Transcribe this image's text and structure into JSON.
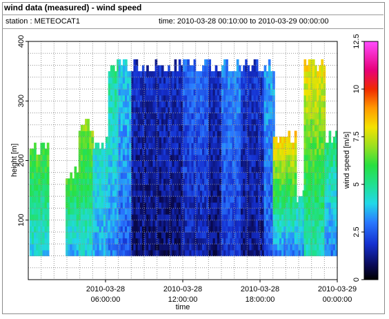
{
  "header": {
    "title": "wind data (measured) - wind speed",
    "station": "station : METEOCAT1",
    "time_range": "time: 2010-03-28 00:10:00 to 2010-03-29 00:00:00"
  },
  "chart_data": {
    "type": "heatmap",
    "title": "wind data (measured) - wind speed",
    "xlabel": "time",
    "ylabel": "height [m]",
    "colorbar_label": "wind speed [m/s]",
    "x_ticks": [
      {
        "line1": "2010-03-28",
        "line2": "06:00:00",
        "hour": 6
      },
      {
        "line1": "2010-03-28",
        "line2": "12:00:00",
        "hour": 12
      },
      {
        "line1": "2010-03-28",
        "line2": "18:00:00",
        "hour": 18
      },
      {
        "line1": "2010-03-29",
        "line2": "00:00:00",
        "hour": 24
      }
    ],
    "xlim_hours": [
      0,
      24
    ],
    "y_ticks": [
      100,
      200,
      300,
      400
    ],
    "ylim": [
      0,
      400
    ],
    "colorbar_ticks": [
      "0",
      "2.5",
      "5",
      "7.5",
      "10",
      "12.5"
    ],
    "colorbar_range": [
      0,
      12.5
    ],
    "grid": true,
    "height_range_measured": [
      40,
      365
    ],
    "profile_time_step_minutes": 10,
    "columns": [
      {
        "start": 0.1,
        "end": 1.5,
        "top": 230,
        "surface": 4.0,
        "upper": 6.5
      },
      {
        "start": 1.5,
        "end": 2.9,
        "top": 0,
        "surface": 0,
        "upper": 0
      },
      {
        "start": 2.9,
        "end": 3.9,
        "top": 185,
        "surface": 3.5,
        "upper": 6.5
      },
      {
        "start": 3.9,
        "end": 5.0,
        "top": 265,
        "surface": 4.0,
        "upper": 7.0
      },
      {
        "start": 5.0,
        "end": 6.2,
        "top": 240,
        "surface": 3.5,
        "upper": 4.5
      },
      {
        "start": 6.2,
        "end": 7.0,
        "top": 365,
        "surface": 3.0,
        "upper": 5.0
      },
      {
        "start": 7.0,
        "end": 8.0,
        "top": 365,
        "surface": 2.5,
        "upper": 4.0
      },
      {
        "start": 8.0,
        "end": 12.0,
        "top": 365,
        "surface": 1.0,
        "upper": 1.8
      },
      {
        "start": 12.0,
        "end": 14.0,
        "top": 365,
        "surface": 1.5,
        "upper": 2.8
      },
      {
        "start": 14.0,
        "end": 15.0,
        "top": 365,
        "surface": 1.0,
        "upper": 1.8
      },
      {
        "start": 15.0,
        "end": 16.5,
        "top": 365,
        "surface": 2.0,
        "upper": 3.2
      },
      {
        "start": 16.5,
        "end": 18.3,
        "top": 365,
        "surface": 1.2,
        "upper": 2.0
      },
      {
        "start": 18.3,
        "end": 19.0,
        "top": 365,
        "surface": 2.5,
        "upper": 3.5
      },
      {
        "start": 19.0,
        "end": 20.8,
        "top": 250,
        "surface": 3.0,
        "upper": 8.5
      },
      {
        "start": 20.8,
        "end": 21.4,
        "top": 150,
        "surface": 3.0,
        "upper": 5.0
      },
      {
        "start": 21.4,
        "end": 23.0,
        "top": 365,
        "surface": 4.5,
        "upper": 8.0
      },
      {
        "start": 23.0,
        "end": 24.0,
        "top": 250,
        "surface": 3.0,
        "upper": 5.5
      }
    ]
  }
}
